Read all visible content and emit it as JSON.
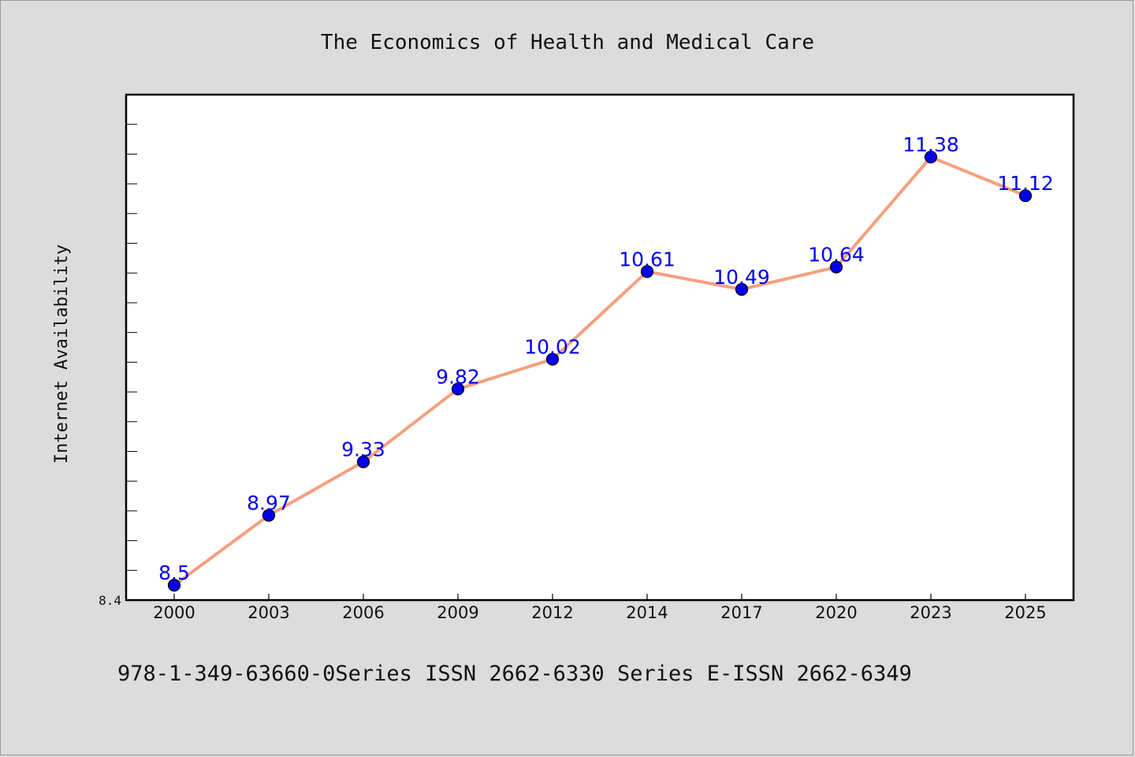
{
  "chart_data": {
    "type": "line",
    "title": "The Economics of Health and Medical Care",
    "xlabel": "",
    "ylabel": "Internet Availability",
    "categories": [
      "2000",
      "2003",
      "2006",
      "2009",
      "2012",
      "2014",
      "2017",
      "2020",
      "2023",
      "2025"
    ],
    "series": [
      {
        "values": [
          8.5,
          8.97,
          9.33,
          9.82,
          10.02,
          10.61,
          10.49,
          10.64,
          11.38,
          11.12
        ],
        "labels": [
          "8.5",
          "8.97",
          "9.33",
          "9.82",
          "10.02",
          "10.61",
          "10.49",
          "10.64",
          "11.38",
          "11.12"
        ]
      }
    ],
    "ylim": [
      8.4,
      11.8
    ],
    "ytick_labels": [
      "8.4"
    ],
    "grid": false,
    "legend": "none"
  },
  "footer": "978-1-349-63660-0Series ISSN 2662-6330 Series E-ISSN 2662-6349",
  "colors": {
    "background": "#dcdcdc",
    "plot_area": "#ffffff",
    "line": "#f4a07e",
    "marker": "#0000ee",
    "data_label": "#0000ee"
  }
}
